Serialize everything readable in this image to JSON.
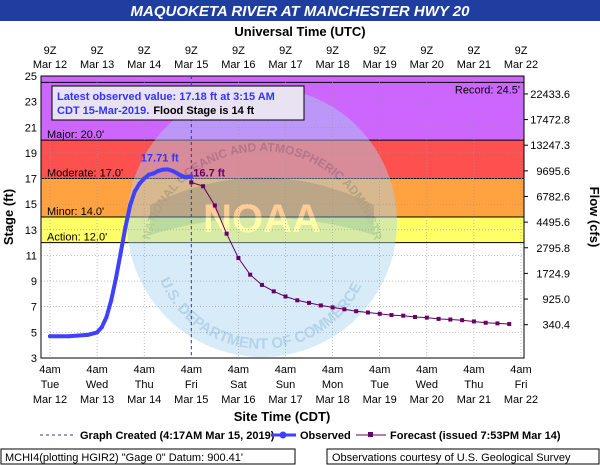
{
  "chart_data": {
    "type": "line",
    "title": "MAQUOKETA RIVER AT MANCHESTER HWY 20",
    "top_axis_title": "Universal Time (UTC)",
    "top_ticks": [
      {
        "line1": "9Z",
        "line2": "Mar 12"
      },
      {
        "line1": "9Z",
        "line2": "Mar 13"
      },
      {
        "line1": "9Z",
        "line2": "Mar 14"
      },
      {
        "line1": "9Z",
        "line2": "Mar 15"
      },
      {
        "line1": "9Z",
        "line2": "Mar 16"
      },
      {
        "line1": "9Z",
        "line2": "Mar 17"
      },
      {
        "line1": "9Z",
        "line2": "Mar 18"
      },
      {
        "line1": "9Z",
        "line2": "Mar 19"
      },
      {
        "line1": "9Z",
        "line2": "Mar 20"
      },
      {
        "line1": "9Z",
        "line2": "Mar 21"
      },
      {
        "line1": "9Z",
        "line2": "Mar 22"
      }
    ],
    "xlabel": "Site Time (CDT)",
    "x_ticks": [
      {
        "line1": "4am",
        "line2": "Tue",
        "line3": "Mar 12"
      },
      {
        "line1": "4am",
        "line2": "Wed",
        "line3": "Mar 13"
      },
      {
        "line1": "4am",
        "line2": "Thu",
        "line3": "Mar 14"
      },
      {
        "line1": "4am",
        "line2": "Fri",
        "line3": "Mar 15"
      },
      {
        "line1": "4am",
        "line2": "Sat",
        "line3": "Mar 16"
      },
      {
        "line1": "4am",
        "line2": "Sun",
        "line3": "Mar 17"
      },
      {
        "line1": "4am",
        "line2": "Mon",
        "line3": "Mar 18"
      },
      {
        "line1": "4am",
        "line2": "Tue",
        "line3": "Mar 19"
      },
      {
        "line1": "4am",
        "line2": "Wed",
        "line3": "Mar 20"
      },
      {
        "line1": "4am",
        "line2": "Thu",
        "line3": "Mar 21"
      },
      {
        "line1": "4am",
        "line2": "Fri",
        "line3": "Mar 22"
      }
    ],
    "xlim_days": [
      0,
      10
    ],
    "ylabel": "Stage (ft)",
    "ylim": [
      3,
      25
    ],
    "y_ticks": [
      3,
      5,
      7,
      9,
      11,
      13,
      15,
      17,
      19,
      21,
      23,
      25
    ],
    "y2label": "Flow (cfs)",
    "y2_ticks": [
      {
        "label": "340.4",
        "stage": 5.6
      },
      {
        "label": "925.0",
        "stage": 7.6
      },
      {
        "label": "1724.9",
        "stage": 9.6
      },
      {
        "label": "2795.8",
        "stage": 11.6
      },
      {
        "label": "4495.6",
        "stage": 13.6
      },
      {
        "label": "6782.6",
        "stage": 15.6
      },
      {
        "label": "9695.6",
        "stage": 17.6
      },
      {
        "label": "13247.3",
        "stage": 19.6
      },
      {
        "label": "17472.8",
        "stage": 21.6
      },
      {
        "label": "22433.6",
        "stage": 23.6
      }
    ],
    "grid": true,
    "flood_categories": [
      {
        "label": "Action: 12.0'",
        "from": 12.0,
        "to": 14.0,
        "color": "#ffff66"
      },
      {
        "label": "Minor: 14.0'",
        "from": 14.0,
        "to": 17.0,
        "color": "#ffa23f"
      },
      {
        "label": "Moderate: 17.0'",
        "from": 17.0,
        "to": 20.0,
        "color": "#ff5050"
      },
      {
        "label": "Major: 20.0'",
        "from": 20.0,
        "to": 25.0,
        "color": "#cc66ff"
      }
    ],
    "record": {
      "label": "Record: 24.5'",
      "value": 24.5
    },
    "graph_created_day": 3.0,
    "observed": {
      "name": "Observed",
      "color": "#4040ff",
      "x": [
        0,
        0.4,
        0.8,
        1.0,
        1.1,
        1.2,
        1.3,
        1.4,
        1.5,
        1.6,
        1.7,
        1.8,
        1.9,
        2.0,
        2.1,
        2.2,
        2.3,
        2.4,
        2.5,
        2.6,
        2.7,
        2.8,
        2.9,
        3.0
      ],
      "y": [
        4.7,
        4.7,
        4.8,
        5.0,
        5.4,
        6.2,
        7.5,
        9.2,
        11.2,
        13.2,
        14.9,
        16.0,
        16.6,
        17.0,
        17.3,
        17.4,
        17.6,
        17.7,
        17.71,
        17.6,
        17.4,
        17.2,
        17.1,
        17.18
      ]
    },
    "forecast": {
      "name": "Forecast (issued 7:53PM Mar 14)",
      "color": "#660066",
      "x": [
        3.0,
        3.25,
        3.5,
        3.75,
        4.0,
        4.25,
        4.5,
        4.75,
        5.0,
        5.25,
        5.5,
        5.75,
        6.0,
        6.25,
        6.5,
        6.75,
        7.0,
        7.25,
        7.5,
        7.75,
        8.0,
        8.25,
        8.5,
        8.75,
        9.0,
        9.25,
        9.5,
        9.75
      ],
      "y": [
        16.7,
        16.4,
        14.9,
        12.7,
        10.8,
        9.5,
        8.7,
        8.2,
        7.8,
        7.5,
        7.3,
        7.1,
        6.95,
        6.8,
        6.65,
        6.55,
        6.45,
        6.35,
        6.3,
        6.2,
        6.15,
        6.05,
        6.0,
        5.95,
        5.85,
        5.75,
        5.7,
        5.65
      ]
    },
    "annotations": {
      "latest_line1": "Latest observed value: 17.18 ft at 3:15 AM",
      "latest_line2a": "CDT 15-Mar-2019.",
      "latest_line2b": "Flood Stage is 14 ft",
      "crest_label": "17.71 ft",
      "forecast_crest_label": "16.7 ft"
    },
    "legend": {
      "graph_created": "Graph Created (4:17AM Mar 15, 2019)",
      "observed": "Observed",
      "forecast": "Forecast (issued 7:53PM Mar 14)"
    },
    "footer": {
      "left": "MCHI4(plotting HGIR2) \"Gage 0\" Datum: 900.41'",
      "right": "Observations courtesy of U.S. Geological Survey"
    },
    "watermark": {
      "agency": "NOAA",
      "arc_top": "NATIONAL OCEANIC AND ATMOSPHERIC ADMINISTRATION",
      "arc_bottom": "U.S. DEPARTMENT OF COMMERCE"
    },
    "colors": {
      "title_bar": "#1f3ea0",
      "title_text": "#ffffff",
      "plot_bg": "#ffffff"
    }
  }
}
